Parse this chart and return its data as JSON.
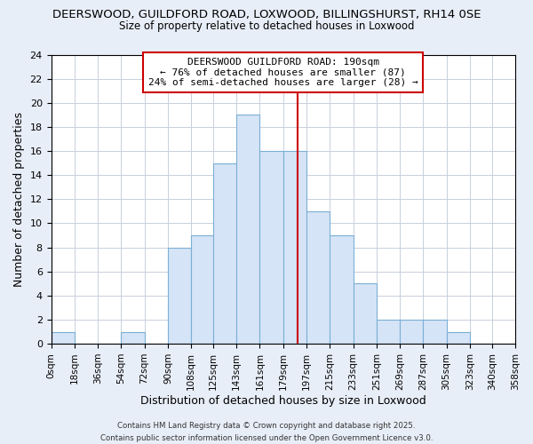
{
  "title1": "DEERSWOOD, GUILDFORD ROAD, LOXWOOD, BILLINGSHURST, RH14 0SE",
  "title2": "Size of property relative to detached houses in Loxwood",
  "xlabel": "Distribution of detached houses by size in Loxwood",
  "ylabel": "Number of detached properties",
  "bins": [
    0,
    18,
    36,
    54,
    72,
    90,
    108,
    125,
    143,
    161,
    179,
    197,
    215,
    233,
    251,
    269,
    287,
    305,
    323,
    340,
    358
  ],
  "bar_heights": [
    1,
    0,
    0,
    1,
    0,
    8,
    9,
    15,
    19,
    16,
    16,
    11,
    9,
    5,
    2,
    2,
    2,
    1,
    0,
    0
  ],
  "bar_color": "#d6e4f7",
  "bar_edge_color": "#7aafd4",
  "property_value": 190,
  "red_line_color": "#cc0000",
  "annotation_line1": "DEERSWOOD GUILDFORD ROAD: 190sqm",
  "annotation_line2": "← 76% of detached houses are smaller (87)",
  "annotation_line3": "24% of semi-detached houses are larger (28) →",
  "ylim": [
    0,
    24
  ],
  "yticks": [
    0,
    2,
    4,
    6,
    8,
    10,
    12,
    14,
    16,
    18,
    20,
    22,
    24
  ],
  "footer": "Contains HM Land Registry data © Crown copyright and database right 2025.\nContains public sector information licensed under the Open Government Licence v3.0.",
  "background_color": "#e8eef8",
  "plot_background": "#ffffff",
  "grid_color": "#c8d0dc"
}
